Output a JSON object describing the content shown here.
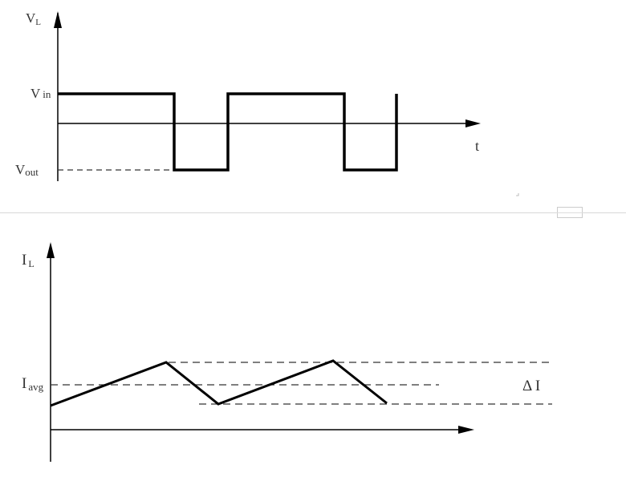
{
  "top_plot": {
    "y_axis_label": "V",
    "y_axis_sub": "L",
    "x_axis_label": "t",
    "level_high": "V",
    "level_high_sub": "in",
    "level_low": "V",
    "level_low_sub": "out"
  },
  "bottom_plot": {
    "y_axis_label": "I",
    "y_axis_sub": "L",
    "avg_label": "I",
    "avg_sub": "avg",
    "ripple_label": "Δ I"
  },
  "colors": {
    "line": "#000000",
    "text": "#333333",
    "separator": "#d8d8d8"
  }
}
